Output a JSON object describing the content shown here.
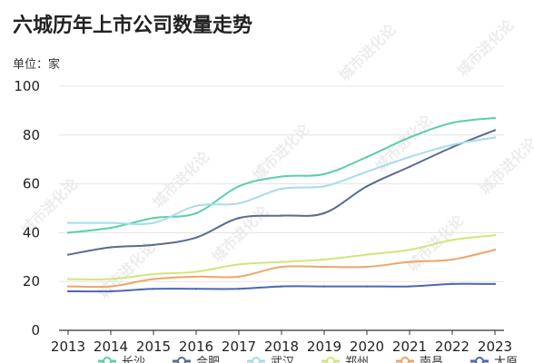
{
  "title": "六城历年上市公司数量走势",
  "unit_label": "单位：家",
  "watermark": "城市进化论",
  "chart_data": {
    "type": "line",
    "x": [
      "2013",
      "2014",
      "2015",
      "2016",
      "2017",
      "2018",
      "2019",
      "2020",
      "2021",
      "2022",
      "2023"
    ],
    "ylim": [
      0,
      100
    ],
    "yticks": [
      0,
      20,
      40,
      60,
      80,
      100
    ],
    "grid": true,
    "legend_position": "bottom",
    "series": [
      {
        "name": "长沙",
        "color": "#5ccfa6",
        "values": [
          40,
          42,
          46,
          48,
          59,
          63,
          64,
          71,
          79,
          85,
          87
        ]
      },
      {
        "name": "合肥",
        "color": "#5a6b91",
        "values": [
          31,
          34,
          35,
          38,
          46,
          47,
          48,
          59,
          67,
          75,
          82
        ]
      },
      {
        "name": "武汉",
        "color": "#a6dcec",
        "values": [
          44,
          44,
          44,
          51,
          52,
          58,
          59,
          65,
          71,
          76,
          79
        ]
      },
      {
        "name": "郑州",
        "color": "#d2e57a",
        "values": [
          21,
          21,
          23,
          24,
          27,
          28,
          29,
          31,
          33,
          37,
          39
        ]
      },
      {
        "name": "南昌",
        "color": "#eea56c",
        "values": [
          18,
          18,
          21,
          22,
          22,
          26,
          26,
          26,
          28,
          29,
          33
        ]
      },
      {
        "name": "太原",
        "color": "#4a68b8",
        "values": [
          16,
          16,
          17,
          17,
          17,
          18,
          18,
          18,
          18,
          19,
          19
        ]
      }
    ]
  }
}
